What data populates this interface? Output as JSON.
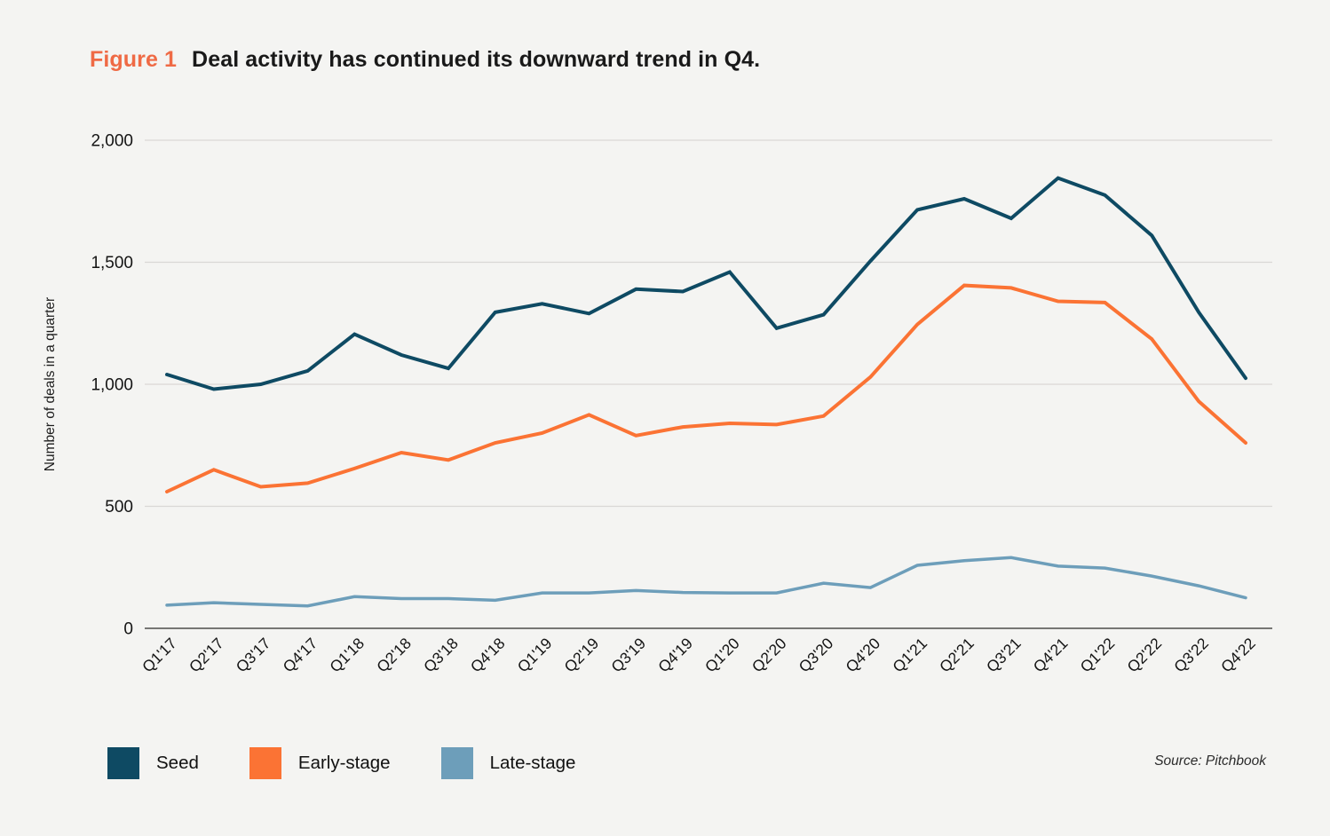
{
  "header": {
    "figure_label": "Figure 1",
    "title": "Deal activity has continued its downward trend in Q4.",
    "accent_color": "#ef6a45"
  },
  "chart_data": {
    "type": "line",
    "title": "Deal activity has continued its downward trend in Q4.",
    "xlabel": "",
    "ylabel": "Number of deals in a quarter",
    "ylim": [
      0,
      2000
    ],
    "yticks": [
      0,
      500,
      1000,
      1500,
      2000
    ],
    "ytick_labels": [
      "0",
      "500",
      "1,000",
      "1,500",
      "2,000"
    ],
    "grid": true,
    "legend_position": "bottom-left",
    "categories": [
      "Q1'17",
      "Q2'17",
      "Q3'17",
      "Q4'17",
      "Q1'18",
      "Q2'18",
      "Q3'18",
      "Q4'18",
      "Q1'19",
      "Q2'19",
      "Q3'19",
      "Q4'19",
      "Q1'20",
      "Q2'20",
      "Q3'20",
      "Q4'20",
      "Q1'21",
      "Q2'21",
      "Q3'21",
      "Q4'21",
      "Q1'22",
      "Q2'22",
      "Q3'22",
      "Q4'22"
    ],
    "series": [
      {
        "name": "Seed",
        "color": "#0e4a63",
        "values": [
          1040,
          980,
          1000,
          1055,
          1205,
          1120,
          1065,
          1295,
          1330,
          1290,
          1390,
          1380,
          1460,
          1230,
          1285,
          1505,
          1715,
          1760,
          1680,
          1845,
          1775,
          1610,
          1295,
          1025
        ]
      },
      {
        "name": "Early-stage",
        "color": "#fb7334",
        "values": [
          560,
          650,
          580,
          595,
          655,
          720,
          690,
          760,
          800,
          875,
          790,
          825,
          840,
          835,
          870,
          1030,
          1245,
          1405,
          1395,
          1340,
          1335,
          1185,
          930,
          760
        ]
      },
      {
        "name": "Late-stage",
        "color": "#6d9eba",
        "values": [
          95,
          105,
          98,
          92,
          130,
          122,
          122,
          115,
          145,
          145,
          155,
          147,
          145,
          145,
          185,
          167,
          258,
          277,
          290,
          255,
          247,
          214,
          174,
          125
        ]
      }
    ]
  },
  "source": {
    "text": "Source: Pitchbook"
  },
  "colors": {
    "background": "#f4f4f2",
    "gridline": "#d9d8d5",
    "axis_line": "#4c4c4a",
    "tick_text": "#141414"
  }
}
